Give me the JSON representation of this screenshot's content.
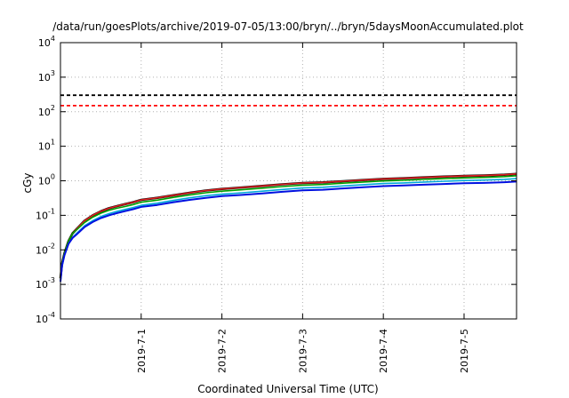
{
  "chart_data": {
    "type": "line",
    "title": "/data/run/goesPlots/archive/2019-07-05/13:00/bryn/../bryn/5daysMoonAccumulated.plot",
    "xlabel": "Coordinated Universal Time (UTC)",
    "ylabel": "cGy",
    "y_scale": "log",
    "ylim": [
      0.0001,
      10000
    ],
    "y_ticks": [
      {
        "value": 0.0001,
        "base": "10",
        "exp": "-4"
      },
      {
        "value": 0.001,
        "base": "10",
        "exp": "-3"
      },
      {
        "value": 0.01,
        "base": "10",
        "exp": "-2"
      },
      {
        "value": 0.1,
        "base": "10",
        "exp": "-1"
      },
      {
        "value": 1,
        "base": "10",
        "exp": "0"
      },
      {
        "value": 10,
        "base": "10",
        "exp": "1"
      },
      {
        "value": 100,
        "base": "10",
        "exp": "2"
      },
      {
        "value": 1000,
        "base": "10",
        "exp": "3"
      },
      {
        "value": 10000,
        "base": "10",
        "exp": "4"
      }
    ],
    "xlim": [
      -1.0,
      4.65
    ],
    "x_ticks": [
      {
        "value": 0,
        "label": "2019-7-1"
      },
      {
        "value": 1,
        "label": "2019-7-2"
      },
      {
        "value": 2,
        "label": "2019-7-3"
      },
      {
        "value": 3,
        "label": "2019-7-4"
      },
      {
        "value": 4,
        "label": "2019-7-5"
      }
    ],
    "grid": true,
    "reference_lines": [
      {
        "y": 300,
        "color": "#000000",
        "dash": "dashed"
      },
      {
        "y": 150,
        "color": "#ff0000",
        "dash": "dashed"
      }
    ],
    "x": [
      -1.0,
      -0.98,
      -0.95,
      -0.9,
      -0.85,
      -0.8,
      -0.7,
      -0.6,
      -0.5,
      -0.4,
      -0.3,
      -0.2,
      -0.1,
      0.0,
      0.2,
      0.4,
      0.6,
      0.8,
      1.0,
      1.25,
      1.5,
      1.75,
      2.0,
      2.25,
      2.5,
      2.75,
      3.0,
      3.25,
      3.5,
      3.75,
      4.0,
      4.25,
      4.5,
      4.65
    ],
    "series": [
      {
        "color": "#000000",
        "width": 2.6,
        "values": [
          0.0015,
          0.004,
          0.008,
          0.018,
          0.03,
          0.04,
          0.07,
          0.1,
          0.13,
          0.16,
          0.185,
          0.21,
          0.24,
          0.28,
          0.32,
          0.38,
          0.45,
          0.52,
          0.58,
          0.64,
          0.71,
          0.79,
          0.86,
          0.9,
          0.97,
          1.05,
          1.13,
          1.18,
          1.25,
          1.32,
          1.38,
          1.42,
          1.5,
          1.58
        ]
      },
      {
        "color": "#e02020",
        "width": 1.6,
        "values": [
          0.0015,
          0.004,
          0.008,
          0.018,
          0.03,
          0.04,
          0.07,
          0.1,
          0.13,
          0.16,
          0.185,
          0.21,
          0.24,
          0.28,
          0.32,
          0.38,
          0.45,
          0.52,
          0.58,
          0.64,
          0.71,
          0.79,
          0.86,
          0.9,
          0.97,
          1.05,
          1.13,
          1.18,
          1.25,
          1.32,
          1.38,
          1.42,
          1.5,
          1.58
        ]
      },
      {
        "color": "#00a000",
        "width": 1.6,
        "values": [
          0.0015,
          0.004,
          0.008,
          0.018,
          0.03,
          0.038,
          0.062,
          0.088,
          0.115,
          0.14,
          0.16,
          0.18,
          0.205,
          0.24,
          0.275,
          0.33,
          0.39,
          0.45,
          0.5,
          0.55,
          0.61,
          0.68,
          0.75,
          0.78,
          0.85,
          0.92,
          0.99,
          1.03,
          1.09,
          1.15,
          1.21,
          1.25,
          1.32,
          1.4
        ]
      },
      {
        "color": "#00a8d8",
        "width": 1.6,
        "values": [
          0.0012,
          0.0035,
          0.007,
          0.015,
          0.023,
          0.03,
          0.05,
          0.07,
          0.092,
          0.112,
          0.13,
          0.148,
          0.168,
          0.195,
          0.225,
          0.27,
          0.32,
          0.37,
          0.41,
          0.45,
          0.5,
          0.56,
          0.62,
          0.65,
          0.71,
          0.77,
          0.83,
          0.87,
          0.92,
          0.97,
          1.02,
          1.05,
          1.1,
          1.15
        ]
      },
      {
        "color": "#0010e0",
        "width": 2.0,
        "values": [
          0.0012,
          0.0035,
          0.007,
          0.015,
          0.022,
          0.028,
          0.046,
          0.064,
          0.083,
          0.1,
          0.116,
          0.132,
          0.15,
          0.175,
          0.2,
          0.24,
          0.28,
          0.32,
          0.36,
          0.39,
          0.43,
          0.48,
          0.53,
          0.55,
          0.6,
          0.65,
          0.7,
          0.73,
          0.77,
          0.81,
          0.85,
          0.87,
          0.91,
          0.95
        ]
      }
    ]
  }
}
